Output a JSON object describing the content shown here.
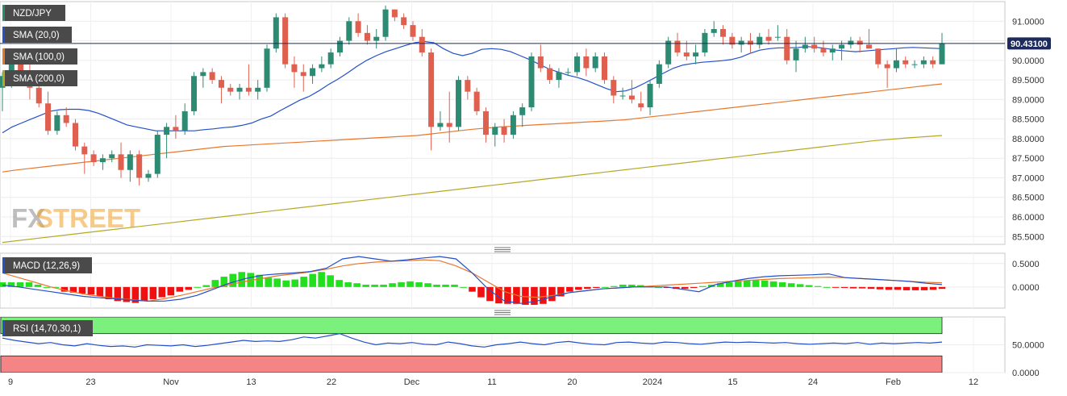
{
  "pair": "NZD/JPY",
  "indicators": {
    "sma20": "SMA (20,0)",
    "sma100": "SMA (100,0)",
    "sma200": "SMA (200,0)",
    "macd": "MACD (12,26,9)",
    "rsi": "RSI (14,70,30,1)"
  },
  "watermark": "FXSTREET",
  "colors": {
    "up": "#2e8b73",
    "down": "#e0604f",
    "sma20": "#2450c8",
    "sma100": "#e8772e",
    "sma200": "#b5a824",
    "macd_line": "#2450c8",
    "signal_line": "#e8772e",
    "hist_pos": "#22e01e",
    "hist_neg": "#f01010",
    "rsi_line": "#2450c8",
    "rsi_overbought": "#7cf07c",
    "rsi_oversold": "#f58484",
    "watermark_fx": "#8a8a8a",
    "watermark_street": "#f0a028"
  },
  "chart_data": [
    {
      "type": "candlestick",
      "title": "NZD/JPY",
      "x_ticks": [
        "9",
        "23",
        "Nov",
        "13",
        "22",
        "Dec",
        "11",
        "20",
        "2024",
        "15",
        "24",
        "Feb",
        "12"
      ],
      "y_ticks": [
        "85.5000",
        "86.0000",
        "86.5000",
        "87.0000",
        "87.5000",
        "88.0000",
        "88.5000",
        "89.0000",
        "89.5000",
        "90.0000",
        "90.5000",
        "91.0000"
      ],
      "ylim": [
        85.3,
        91.5
      ],
      "last_price": "90.43100",
      "candles": [
        {
          "o": 89.3,
          "h": 89.7,
          "l": 88.7,
          "c": 89.6
        },
        {
          "o": 89.6,
          "h": 90.0,
          "l": 89.3,
          "c": 89.9
        },
        {
          "o": 89.9,
          "h": 90.1,
          "l": 89.4,
          "c": 89.5
        },
        {
          "o": 89.5,
          "h": 89.9,
          "l": 89.0,
          "c": 89.3
        },
        {
          "o": 89.3,
          "h": 89.6,
          "l": 88.8,
          "c": 88.9
        },
        {
          "o": 88.9,
          "h": 89.2,
          "l": 88.1,
          "c": 88.2
        },
        {
          "o": 88.2,
          "h": 88.7,
          "l": 88.1,
          "c": 88.6
        },
        {
          "o": 88.6,
          "h": 88.8,
          "l": 88.3,
          "c": 88.4
        },
        {
          "o": 88.4,
          "h": 88.5,
          "l": 87.7,
          "c": 87.8
        },
        {
          "o": 87.8,
          "h": 87.9,
          "l": 87.1,
          "c": 87.6
        },
        {
          "o": 87.6,
          "h": 87.7,
          "l": 87.3,
          "c": 87.4
        },
        {
          "o": 87.4,
          "h": 87.6,
          "l": 87.2,
          "c": 87.5
        },
        {
          "o": 87.5,
          "h": 87.7,
          "l": 87.4,
          "c": 87.6
        },
        {
          "o": 87.6,
          "h": 87.9,
          "l": 87.0,
          "c": 87.2
        },
        {
          "o": 87.2,
          "h": 87.7,
          "l": 86.9,
          "c": 87.6
        },
        {
          "o": 87.6,
          "h": 87.7,
          "l": 86.8,
          "c": 87.0
        },
        {
          "o": 87.0,
          "h": 87.2,
          "l": 86.9,
          "c": 87.1
        },
        {
          "o": 87.1,
          "h": 88.2,
          "l": 87.0,
          "c": 88.1
        },
        {
          "o": 88.1,
          "h": 88.4,
          "l": 87.5,
          "c": 88.3
        },
        {
          "o": 88.3,
          "h": 88.6,
          "l": 88.0,
          "c": 88.2
        },
        {
          "o": 88.2,
          "h": 88.9,
          "l": 88.1,
          "c": 88.7
        },
        {
          "o": 88.7,
          "h": 89.7,
          "l": 88.6,
          "c": 89.6
        },
        {
          "o": 89.6,
          "h": 89.8,
          "l": 89.3,
          "c": 89.7
        },
        {
          "o": 89.7,
          "h": 89.8,
          "l": 89.4,
          "c": 89.5
        },
        {
          "o": 89.5,
          "h": 89.6,
          "l": 88.9,
          "c": 89.3
        },
        {
          "o": 89.3,
          "h": 89.4,
          "l": 89.1,
          "c": 89.2
        },
        {
          "o": 89.2,
          "h": 89.4,
          "l": 89.0,
          "c": 89.3
        },
        {
          "o": 89.3,
          "h": 89.9,
          "l": 89.1,
          "c": 89.2
        },
        {
          "o": 89.2,
          "h": 89.5,
          "l": 89.0,
          "c": 89.3
        },
        {
          "o": 89.3,
          "h": 90.4,
          "l": 89.2,
          "c": 90.3
        },
        {
          "o": 90.3,
          "h": 91.2,
          "l": 90.2,
          "c": 91.1
        },
        {
          "o": 91.1,
          "h": 91.2,
          "l": 89.8,
          "c": 89.9
        },
        {
          "o": 89.9,
          "h": 90.1,
          "l": 89.3,
          "c": 89.7
        },
        {
          "o": 89.7,
          "h": 89.9,
          "l": 89.2,
          "c": 89.6
        },
        {
          "o": 89.6,
          "h": 89.9,
          "l": 89.4,
          "c": 89.8
        },
        {
          "o": 89.8,
          "h": 90.1,
          "l": 89.7,
          "c": 89.9
        },
        {
          "o": 89.9,
          "h": 90.3,
          "l": 89.8,
          "c": 90.2
        },
        {
          "o": 90.2,
          "h": 90.6,
          "l": 90.1,
          "c": 90.5
        },
        {
          "o": 90.5,
          "h": 91.1,
          "l": 90.4,
          "c": 91.0
        },
        {
          "o": 91.0,
          "h": 91.2,
          "l": 90.6,
          "c": 90.7
        },
        {
          "o": 90.7,
          "h": 90.9,
          "l": 90.4,
          "c": 90.5
        },
        {
          "o": 90.5,
          "h": 90.8,
          "l": 90.3,
          "c": 90.6
        },
        {
          "o": 90.6,
          "h": 91.4,
          "l": 90.5,
          "c": 91.3
        },
        {
          "o": 91.3,
          "h": 91.3,
          "l": 91.0,
          "c": 91.1
        },
        {
          "o": 91.1,
          "h": 91.2,
          "l": 90.8,
          "c": 90.9
        },
        {
          "o": 90.9,
          "h": 91.0,
          "l": 90.5,
          "c": 90.6
        },
        {
          "o": 90.6,
          "h": 90.8,
          "l": 90.1,
          "c": 90.2
        },
        {
          "o": 90.2,
          "h": 90.3,
          "l": 87.7,
          "c": 88.3
        },
        {
          "o": 88.3,
          "h": 88.7,
          "l": 88.2,
          "c": 88.4
        },
        {
          "o": 88.4,
          "h": 89.2,
          "l": 87.9,
          "c": 88.3
        },
        {
          "o": 88.3,
          "h": 89.6,
          "l": 88.2,
          "c": 89.5
        },
        {
          "o": 89.5,
          "h": 89.6,
          "l": 89.0,
          "c": 89.2
        },
        {
          "o": 89.2,
          "h": 89.3,
          "l": 88.6,
          "c": 88.7
        },
        {
          "o": 88.7,
          "h": 88.8,
          "l": 87.9,
          "c": 88.1
        },
        {
          "o": 88.1,
          "h": 88.4,
          "l": 87.8,
          "c": 88.3
        },
        {
          "o": 88.3,
          "h": 88.5,
          "l": 87.9,
          "c": 88.1
        },
        {
          "o": 88.1,
          "h": 88.7,
          "l": 88.0,
          "c": 88.6
        },
        {
          "o": 88.6,
          "h": 88.9,
          "l": 88.3,
          "c": 88.8
        },
        {
          "o": 88.8,
          "h": 90.2,
          "l": 88.7,
          "c": 90.1
        },
        {
          "o": 90.1,
          "h": 90.4,
          "l": 89.7,
          "c": 89.8
        },
        {
          "o": 89.8,
          "h": 89.9,
          "l": 89.4,
          "c": 89.5
        },
        {
          "o": 89.5,
          "h": 89.8,
          "l": 89.3,
          "c": 89.7
        },
        {
          "o": 89.7,
          "h": 89.8,
          "l": 89.6,
          "c": 89.7
        },
        {
          "o": 89.7,
          "h": 90.2,
          "l": 89.6,
          "c": 90.1
        },
        {
          "o": 90.1,
          "h": 90.3,
          "l": 89.6,
          "c": 89.8
        },
        {
          "o": 89.8,
          "h": 90.2,
          "l": 89.7,
          "c": 90.1
        },
        {
          "o": 90.1,
          "h": 90.2,
          "l": 89.4,
          "c": 89.5
        },
        {
          "o": 89.5,
          "h": 89.6,
          "l": 88.9,
          "c": 89.1
        },
        {
          "o": 89.1,
          "h": 89.3,
          "l": 89.0,
          "c": 89.1
        },
        {
          "o": 89.1,
          "h": 89.5,
          "l": 88.9,
          "c": 89.0
        },
        {
          "o": 88.9,
          "h": 89.2,
          "l": 88.7,
          "c": 88.8
        },
        {
          "o": 88.8,
          "h": 89.5,
          "l": 88.6,
          "c": 89.4
        },
        {
          "o": 89.4,
          "h": 90.0,
          "l": 89.3,
          "c": 89.9
        },
        {
          "o": 89.9,
          "h": 90.6,
          "l": 89.8,
          "c": 90.5
        },
        {
          "o": 90.5,
          "h": 90.7,
          "l": 90.1,
          "c": 90.2
        },
        {
          "o": 90.2,
          "h": 90.5,
          "l": 90.0,
          "c": 90.1
        },
        {
          "o": 90.1,
          "h": 90.4,
          "l": 89.9,
          "c": 90.2
        },
        {
          "o": 90.2,
          "h": 90.8,
          "l": 90.1,
          "c": 90.7
        },
        {
          "o": 90.7,
          "h": 91.0,
          "l": 90.6,
          "c": 90.8
        },
        {
          "o": 90.8,
          "h": 90.9,
          "l": 90.4,
          "c": 90.6
        },
        {
          "o": 90.6,
          "h": 90.7,
          "l": 90.3,
          "c": 90.4
        },
        {
          "o": 90.4,
          "h": 90.6,
          "l": 90.2,
          "c": 90.5
        },
        {
          "o": 90.5,
          "h": 90.7,
          "l": 90.2,
          "c": 90.4
        },
        {
          "o": 90.4,
          "h": 90.7,
          "l": 90.3,
          "c": 90.6
        },
        {
          "o": 90.6,
          "h": 90.8,
          "l": 90.4,
          "c": 90.5
        },
        {
          "o": 90.6,
          "h": 90.9,
          "l": 90.5,
          "c": 90.6
        },
        {
          "o": 90.6,
          "h": 90.8,
          "l": 89.9,
          "c": 90.0
        },
        {
          "o": 90.0,
          "h": 90.5,
          "l": 89.7,
          "c": 90.3
        },
        {
          "o": 90.3,
          "h": 90.6,
          "l": 90.2,
          "c": 90.4
        },
        {
          "o": 90.4,
          "h": 90.6,
          "l": 90.2,
          "c": 90.3
        },
        {
          "o": 90.3,
          "h": 90.5,
          "l": 90.1,
          "c": 90.2
        },
        {
          "o": 90.2,
          "h": 90.4,
          "l": 90.0,
          "c": 90.3
        },
        {
          "o": 90.3,
          "h": 90.5,
          "l": 90.0,
          "c": 90.4
        },
        {
          "o": 90.4,
          "h": 90.6,
          "l": 90.3,
          "c": 90.5
        },
        {
          "o": 90.5,
          "h": 90.6,
          "l": 90.2,
          "c": 90.4
        },
        {
          "o": 90.4,
          "h": 90.8,
          "l": 90.3,
          "c": 90.3
        },
        {
          "o": 90.3,
          "h": 90.3,
          "l": 89.8,
          "c": 89.9
        },
        {
          "o": 89.9,
          "h": 90.0,
          "l": 89.3,
          "c": 89.8
        },
        {
          "o": 89.8,
          "h": 90.3,
          "l": 89.7,
          "c": 90.0
        },
        {
          "o": 90.0,
          "h": 90.1,
          "l": 89.8,
          "c": 89.9
        },
        {
          "o": 89.9,
          "h": 90.0,
          "l": 89.8,
          "c": 89.9
        },
        {
          "o": 89.9,
          "h": 90.1,
          "l": 89.8,
          "c": 90.0
        },
        {
          "o": 90.0,
          "h": 90.1,
          "l": 89.8,
          "c": 89.9
        },
        {
          "o": 89.9,
          "h": 90.7,
          "l": 89.9,
          "c": 90.43
        }
      ],
      "sma20": [
        88.15,
        88.3,
        88.4,
        88.5,
        88.6,
        88.7,
        88.74,
        88.75,
        88.75,
        88.72,
        88.65,
        88.55,
        88.45,
        88.35,
        88.3,
        88.25,
        88.2,
        88.2,
        88.2,
        88.2,
        88.2,
        88.23,
        88.25,
        88.28,
        88.3,
        88.34,
        88.4,
        88.5,
        88.58,
        88.72,
        88.85,
        88.98,
        89.08,
        89.22,
        89.38,
        89.52,
        89.68,
        89.85,
        90.0,
        90.12,
        90.22,
        90.3,
        90.38,
        90.45,
        90.48,
        90.45,
        90.3,
        90.18,
        90.12,
        90.18,
        90.28,
        90.3,
        90.28,
        90.22,
        90.12,
        90.02,
        89.9,
        89.78,
        89.7,
        89.62,
        89.56,
        89.48,
        89.38,
        89.28,
        89.2,
        89.22,
        89.3,
        89.42,
        89.55,
        89.68,
        89.8,
        89.88,
        89.92,
        89.95,
        89.97,
        89.99,
        90.02,
        90.08,
        90.18,
        90.26,
        90.3,
        90.32,
        90.32,
        90.33,
        90.35,
        90.33,
        90.3,
        90.26,
        90.24,
        90.22,
        90.24,
        90.26,
        90.28,
        90.3,
        90.32,
        90.33,
        90.32,
        90.31,
        90.3
      ],
      "sma100": [
        87.15,
        87.2,
        87.24,
        87.28,
        87.32,
        87.36,
        87.4,
        87.44,
        87.48,
        87.52,
        87.56,
        87.6,
        87.64,
        87.68,
        87.72,
        87.76,
        87.8,
        87.82,
        87.84,
        87.86,
        87.88,
        87.9,
        87.92,
        87.94,
        87.96,
        87.98,
        88.0,
        88.02,
        88.04,
        88.06,
        88.08,
        88.12,
        88.16,
        88.2,
        88.24,
        88.27,
        88.3,
        88.32,
        88.34,
        88.36,
        88.38,
        88.4,
        88.42,
        88.44,
        88.46,
        88.48,
        88.52,
        88.56,
        88.6,
        88.64,
        88.68,
        88.72,
        88.76,
        88.8,
        88.84,
        88.88,
        88.92,
        88.96,
        89.0,
        89.04,
        89.08,
        89.12,
        89.16,
        89.2,
        89.24,
        89.28,
        89.32,
        89.36,
        89.4
      ],
      "sma200": [
        85.35,
        85.45,
        85.55,
        85.65,
        85.75,
        85.85,
        85.95,
        86.05,
        86.15,
        86.25,
        86.35,
        86.45,
        86.55,
        86.65,
        86.75,
        86.85,
        86.95,
        87.05,
        87.15,
        87.25,
        87.35,
        87.45,
        87.55,
        87.65,
        87.75,
        87.85,
        87.95,
        88.02,
        88.08
      ]
    },
    {
      "type": "macd",
      "title": "MACD (12,26,9)",
      "y_ticks": [
        "0.5000",
        "0.0000"
      ],
      "ylim": [
        -0.45,
        0.72
      ],
      "macd": [
        0.04,
        0.0,
        -0.05,
        -0.1,
        -0.15,
        -0.2,
        -0.23,
        -0.25,
        -0.28,
        -0.3,
        -0.3,
        -0.26,
        -0.18,
        -0.05,
        0.08,
        0.18,
        0.25,
        0.28,
        0.3,
        0.33,
        0.4,
        0.6,
        0.65,
        0.6,
        0.55,
        0.58,
        0.62,
        0.65,
        0.6,
        0.3,
        -0.05,
        -0.3,
        -0.35,
        -0.3,
        -0.2,
        -0.12,
        -0.08,
        -0.04,
        -0.02,
        0.0,
        0.0,
        0.0,
        -0.05,
        -0.1,
        0.05,
        0.12,
        0.18,
        0.22,
        0.24,
        0.25,
        0.26,
        0.28,
        0.2,
        0.18,
        0.16,
        0.14,
        0.12,
        0.08,
        0.05
      ],
      "signal": [
        0.3,
        0.2,
        0.1,
        0.0,
        -0.08,
        -0.15,
        -0.2,
        -0.24,
        -0.27,
        -0.3,
        -0.25,
        -0.18,
        -0.1,
        -0.02,
        0.05,
        0.12,
        0.18,
        0.24,
        0.28,
        0.32,
        0.38,
        0.45,
        0.5,
        0.53,
        0.55,
        0.56,
        0.58,
        0.56,
        0.45,
        0.3,
        0.1,
        -0.1,
        -0.2,
        -0.22,
        -0.18,
        -0.12,
        -0.08,
        -0.04,
        -0.02,
        0.0,
        0.02,
        0.04,
        0.06,
        0.08,
        0.1,
        0.12,
        0.14,
        0.16,
        0.18,
        0.19,
        0.2,
        0.21,
        0.2,
        0.18,
        0.16,
        0.14,
        0.12,
        0.1,
        0.09
      ],
      "histogram": [
        0.1,
        0.1,
        0.1,
        0.1,
        0.05,
        0.0,
        0.0,
        -0.1,
        -0.12,
        -0.14,
        -0.16,
        -0.2,
        -0.26,
        -0.3,
        -0.32,
        -0.34,
        -0.3,
        -0.26,
        -0.22,
        -0.18,
        -0.1,
        -0.06,
        0.0,
        0.04,
        0.15,
        0.22,
        0.28,
        0.32,
        0.3,
        0.26,
        0.2,
        0.18,
        0.14,
        0.16,
        0.22,
        0.28,
        0.32,
        0.25,
        0.15,
        0.1,
        0.08,
        0.05,
        0.05,
        0.05,
        0.08,
        0.1,
        0.12,
        0.1,
        0.08,
        0.05,
        0.05,
        0.05,
        0.0,
        -0.1,
        -0.22,
        -0.3,
        -0.35,
        -0.36,
        -0.36,
        -0.38,
        -0.38,
        -0.36,
        -0.3,
        -0.2,
        -0.1,
        -0.06,
        -0.04,
        -0.02,
        0.0,
        0.02,
        0.05,
        0.05,
        0.04,
        0.02,
        0.0,
        -0.02,
        -0.04,
        -0.04,
        -0.02,
        0.02,
        0.05,
        0.08,
        0.1,
        0.12,
        0.14,
        0.15,
        0.14,
        0.12,
        0.1,
        0.08,
        0.06,
        0.04,
        0.02,
        0.0,
        -0.01,
        -0.02,
        -0.03,
        -0.03,
        -0.04,
        -0.05,
        -0.06,
        -0.06,
        -0.07,
        -0.07,
        -0.07,
        -0.06,
        -0.04
      ]
    },
    {
      "type": "line",
      "title": "RSI (14,70,30,1)",
      "y_ticks": [
        "50.0000",
        "0.0000"
      ],
      "ylim": [
        0,
        100
      ],
      "overbought": 70,
      "oversold": 30,
      "rsi": [
        62,
        58,
        55,
        52,
        54,
        50,
        48,
        52,
        49,
        47,
        48,
        46,
        50,
        49,
        48,
        50,
        47,
        49,
        52,
        55,
        58,
        56,
        57,
        56,
        59,
        64,
        62,
        66,
        70,
        62,
        55,
        50,
        53,
        52,
        54,
        51,
        50,
        55,
        52,
        48,
        46,
        50,
        52,
        55,
        52,
        50,
        54,
        56,
        53,
        51,
        50,
        54,
        55,
        53,
        52,
        55,
        54,
        52,
        51,
        53,
        55,
        54,
        55,
        54,
        53,
        54,
        52,
        51,
        52,
        53,
        52,
        54,
        51,
        53,
        52,
        53,
        54,
        53,
        55
      ]
    }
  ]
}
